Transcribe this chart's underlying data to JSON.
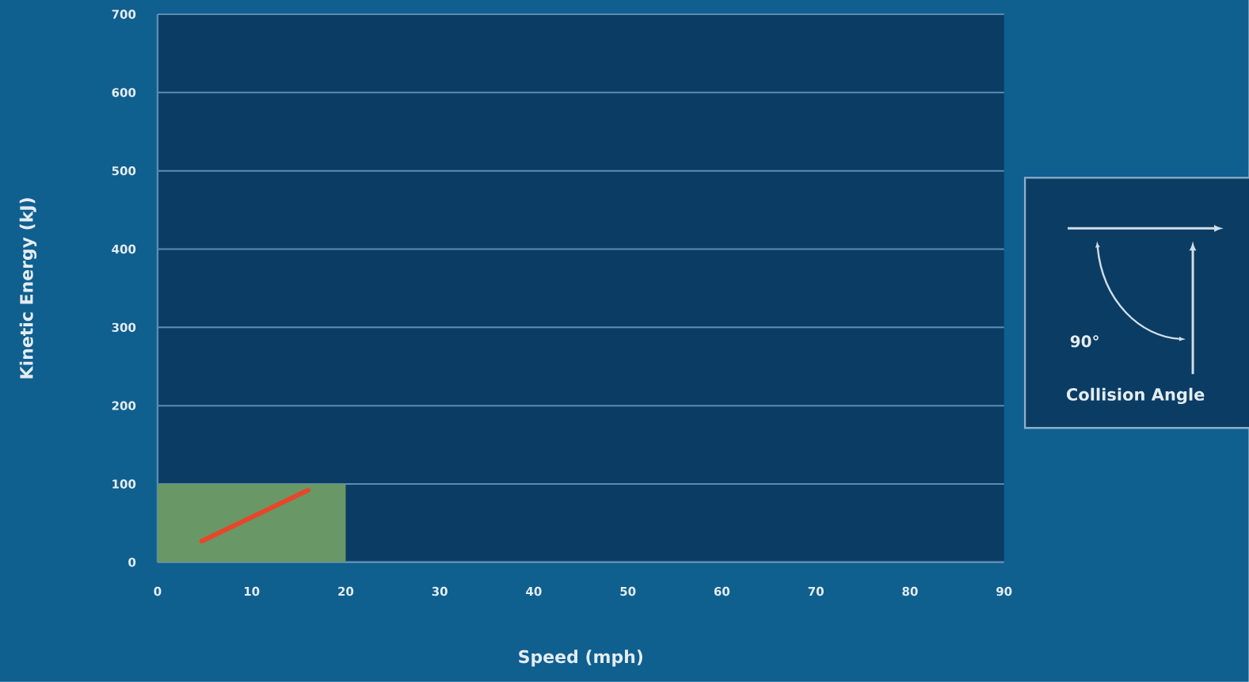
{
  "chart_data": {
    "type": "area",
    "xlabel": "Speed (mph)",
    "ylabel": "Kinetic Energy (kJ)",
    "xlim": [
      0,
      90
    ],
    "ylim": [
      0,
      700
    ],
    "xticks": [
      0,
      10,
      20,
      30,
      40,
      50,
      60,
      70,
      80,
      90
    ],
    "yticks": [
      0,
      100,
      200,
      300,
      400,
      500,
      600,
      700
    ],
    "grid": "y",
    "series": [
      {
        "color": "#6a9766",
        "x": [
          0,
          20
        ],
        "values": [
          100,
          100
        ]
      },
      {
        "type": "line",
        "color": "#e8452a",
        "x": [
          4.7,
          16
        ],
        "values": [
          27,
          92
        ]
      }
    ],
    "annotations": [
      "90°",
      "Collision Angle"
    ]
  }
}
